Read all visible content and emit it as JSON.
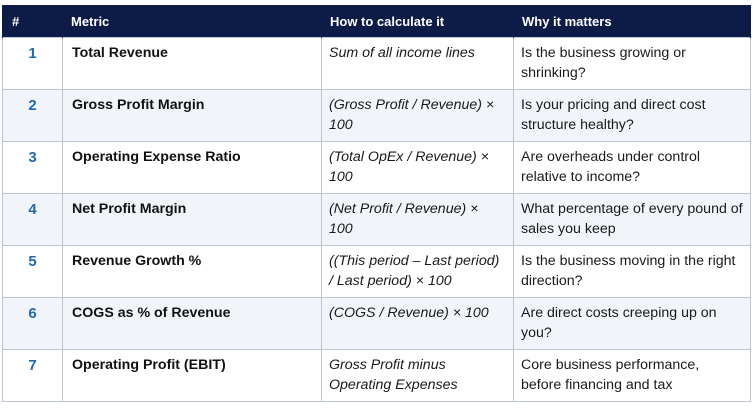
{
  "table": {
    "headers": [
      "#",
      "Metric",
      "How to calculate it",
      "Why it matters"
    ],
    "rows": [
      {
        "num": "1",
        "metric": "Total Revenue",
        "calc": "Sum of all income lines",
        "why": "Is the business growing or shrinking?"
      },
      {
        "num": "2",
        "metric": "Gross Profit Margin",
        "calc": "(Gross Profit / Revenue) × 100",
        "why": "Is your pricing and direct cost structure healthy?"
      },
      {
        "num": "3",
        "metric": "Operating Expense Ratio",
        "calc": "(Total OpEx / Revenue) × 100",
        "why": "Are overheads under control relative to income?"
      },
      {
        "num": "4",
        "metric": "Net Profit Margin",
        "calc": "(Net Profit / Revenue) × 100",
        "why": "What percentage of every pound of sales you keep"
      },
      {
        "num": "5",
        "metric": "Revenue Growth %",
        "calc": "((This period – Last period) / Last period) × 100",
        "why": "Is the business moving in the right direction?"
      },
      {
        "num": "6",
        "metric": "COGS as % of Revenue",
        "calc": "(COGS / Revenue) × 100",
        "why": "Are direct costs creeping up on you?"
      },
      {
        "num": "7",
        "metric": "Operating Profit (EBIT)",
        "calc": "Gross Profit minus Operating Expenses",
        "why": "Core business performance, before financing and tax"
      }
    ]
  },
  "colors": {
    "header_bg": "#0d1b47",
    "number_accent": "#2169b3",
    "row_stripe": "#f1f4f9",
    "border": "#bcc6d6"
  }
}
